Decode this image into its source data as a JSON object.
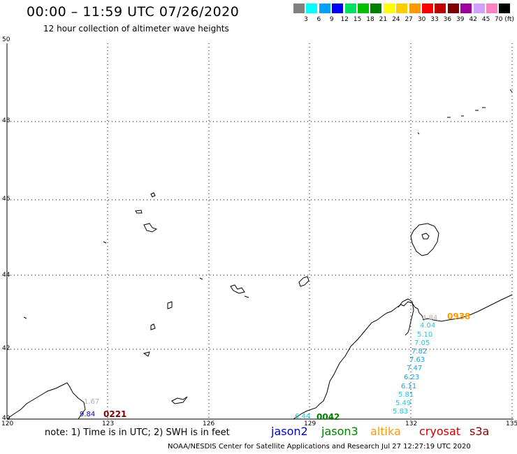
{
  "header": {
    "title": "00:00 – 11:59 UTC 07/26/2020",
    "subtitle": "12 hour collection of altimeter wave heights"
  },
  "scale": {
    "colors": [
      "#808080",
      "#00ffff",
      "#00a0ff",
      "#0000ff",
      "#00e060",
      "#00c000",
      "#008000",
      "#ffff00",
      "#ffcc00",
      "#ff9900",
      "#ff0000",
      "#c00000",
      "#800000",
      "#a000a0",
      "#d0a0ff",
      "#ff80c0",
      "#000000"
    ],
    "labels": [
      "3",
      "6",
      "9",
      "12",
      "15",
      "18",
      "21",
      "24",
      "27",
      "30",
      "33",
      "36",
      "39",
      "42",
      "45",
      "70 (ft)"
    ]
  },
  "axes": {
    "lat_labels": [
      "50",
      "48",
      "46",
      "44",
      "42",
      "40"
    ],
    "lon_labels": [
      "120",
      "123",
      "126",
      "129",
      "132",
      "135"
    ]
  },
  "observations": {
    "east_track": [
      "4.04",
      "5.10",
      "7.05",
      "7.82",
      "7.63",
      "7.47",
      "6.23",
      "6.11",
      "5.81",
      "5.49",
      "5.83"
    ],
    "east_top_value": "4.84",
    "southwest_values": [
      "1.67",
      "9.84"
    ],
    "south_value": "6.44",
    "pass_times": [
      {
        "label": "0221",
        "color": "#800000"
      },
      {
        "label": "0042",
        "color": "#008000"
      },
      {
        "label": "0938",
        "color": "#ff9900"
      }
    ]
  },
  "footer": {
    "note": "note: 1) Time is in UTC; 2) SWH is in feet",
    "credit": "NOAA/NESDIS Center for Satellite Applications and Research   Jul 27 12:27:19 UTC 2020",
    "legend": [
      {
        "label": "jason2",
        "color": "#0000cc"
      },
      {
        "label": "jason3",
        "color": "#008000"
      },
      {
        "label": "altika",
        "color": "#ff9900"
      },
      {
        "label": "cryosat",
        "color": "#cc0000"
      },
      {
        "label": "s3a",
        "color": "#800000"
      }
    ]
  }
}
